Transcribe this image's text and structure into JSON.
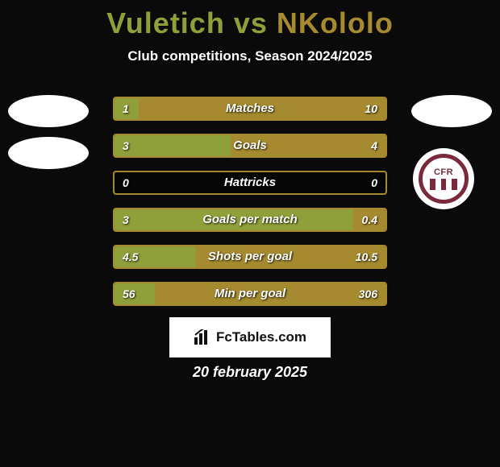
{
  "colors": {
    "player1": "#8fa03a",
    "player2": "#a58a2f",
    "background": "#0a0a0a"
  },
  "header": {
    "player1_name": "Vuletich",
    "vs": " vs ",
    "player2_name": "NKololo",
    "subtitle": "Club competitions, Season 2024/2025"
  },
  "stats": [
    {
      "label": "Matches",
      "left_val": "1",
      "right_val": "10",
      "left_pct": 9,
      "right_pct": 91
    },
    {
      "label": "Goals",
      "left_val": "3",
      "right_val": "4",
      "left_pct": 43,
      "right_pct": 57
    },
    {
      "label": "Hattricks",
      "left_val": "0",
      "right_val": "0",
      "left_pct": 0,
      "right_pct": 0
    },
    {
      "label": "Goals per match",
      "left_val": "3",
      "right_val": "0.4",
      "left_pct": 88,
      "right_pct": 12
    },
    {
      "label": "Shots per goal",
      "left_val": "4.5",
      "right_val": "10.5",
      "left_pct": 30,
      "right_pct": 70
    },
    {
      "label": "Min per goal",
      "left_val": "56",
      "right_val": "306",
      "left_pct": 15,
      "right_pct": 85
    }
  ],
  "badge": {
    "text": "CFR"
  },
  "footer": {
    "logo_text": "FcTables.com",
    "date": "20 february 2025"
  }
}
